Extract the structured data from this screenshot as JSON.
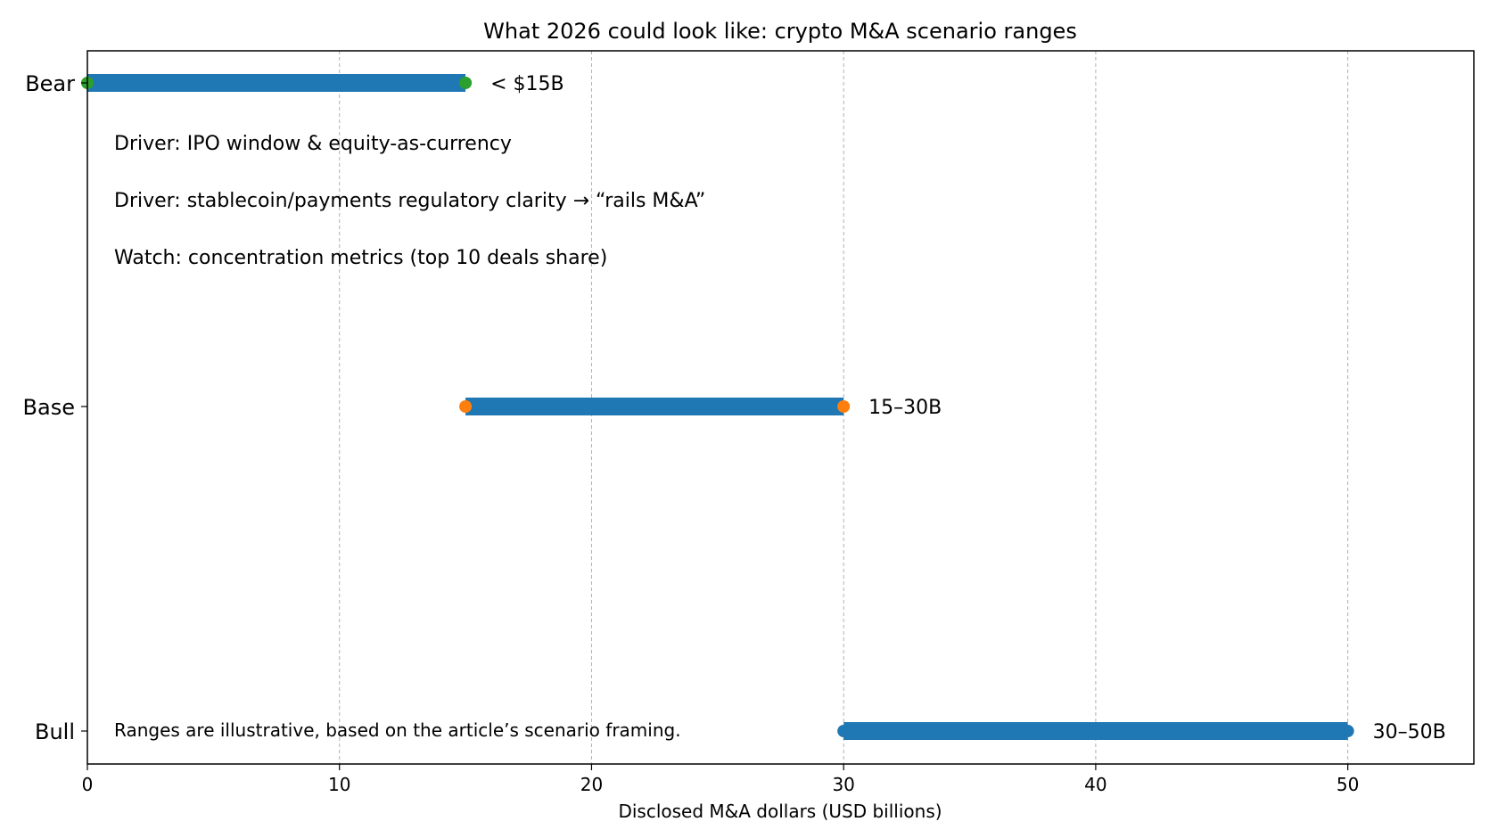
{
  "chart_data": {
    "type": "range",
    "title": "What 2026 could look like: crypto M&A scenario ranges",
    "xlabel": "Disclosed M&A dollars (USD billions)",
    "ylabel": "",
    "xlim": [
      0,
      55
    ],
    "xticks": [
      0,
      10,
      20,
      30,
      40,
      50
    ],
    "grid": "x, dashed",
    "series": [
      {
        "name": "Bear",
        "low": 0,
        "high": 15,
        "label": "< $15B",
        "marker_color": "#2ca02c",
        "bar_color": "#1f77b4"
      },
      {
        "name": "Base",
        "low": 15,
        "high": 30,
        "label": "15–30B",
        "marker_color": "#ff7f0e",
        "bar_color": "#1f77b4"
      },
      {
        "name": "Bull",
        "low": 30,
        "high": 50,
        "label": "30–50B",
        "marker_color": "#1f77b4",
        "bar_color": "#1f77b4"
      }
    ],
    "annotations": [
      "Driver: IPO window & equity-as-currency",
      "Driver: stablecoin/payments regulatory clarity → “rails M&A”",
      "Watch: concentration metrics (top 10 deals share)"
    ],
    "footnote": "Ranges are illustrative, based on the article’s scenario framing."
  }
}
